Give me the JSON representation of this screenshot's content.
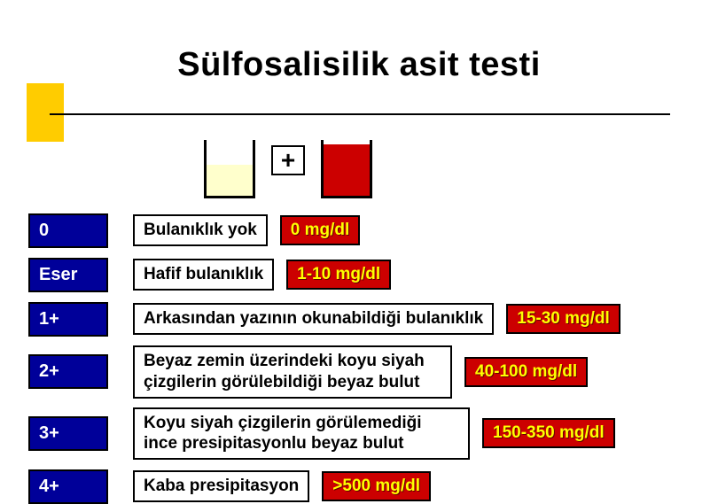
{
  "title": "Sülfosalisilik asit testi",
  "plus_sign": "+",
  "beaker_left_fill": "#ffffcc",
  "beaker_right_fill": "#cc0000",
  "accent_color": "#ffcc00",
  "grade_bg": "#000099",
  "value_bg": "#cc0000",
  "value_fg": "#ffff00",
  "rows": [
    {
      "grade": "0",
      "desc": "Bulanıklık yok",
      "value": "0 mg/dl",
      "tall": false,
      "value_inline": true
    },
    {
      "grade": "Eser",
      "desc": "Hafif bulanıklık",
      "value": "1-10 mg/dl",
      "tall": false,
      "value_inline": true
    },
    {
      "grade": "1+",
      "desc": "Arkasından yazının okunabildiği bulanıklık",
      "value": "15-30 mg/dl",
      "tall": false,
      "value_inline": false
    },
    {
      "grade": "2+",
      "desc": "Beyaz zemin üzerindeki koyu siyah çizgilerin görülebildiği beyaz bulut",
      "value": "40-100 mg/dl",
      "tall": true,
      "value_inline": false
    },
    {
      "grade": "3+",
      "desc": "Koyu siyah çizgilerin görülemediği ince presipitasyonlu beyaz bulut",
      "value": "150-350 mg/dl",
      "tall": true,
      "value_inline": false
    },
    {
      "grade": "4+",
      "desc": "Kaba presipitasyon",
      "value": ">500 mg/dl",
      "tall": false,
      "value_inline": true
    }
  ],
  "desc_widths": [
    null,
    null,
    null,
    360,
    380,
    null
  ]
}
